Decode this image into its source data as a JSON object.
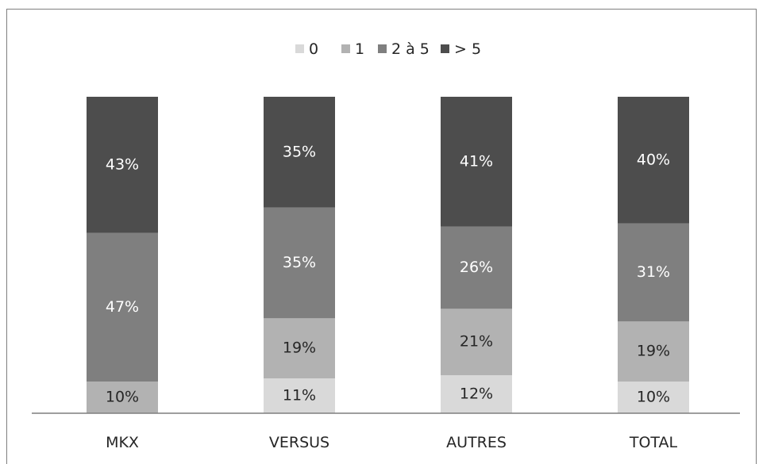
{
  "chart_data": {
    "type": "bar",
    "stacked": true,
    "categories": [
      "MKX",
      "VERSUS",
      "AUTRES",
      "TOTAL"
    ],
    "series": [
      {
        "name": "0",
        "color": "#d9d9d9",
        "label_color": "#262626",
        "values": [
          0,
          11,
          12,
          10
        ]
      },
      {
        "name": "1",
        "color": "#b2b2b2",
        "label_color": "#262626",
        "values": [
          10,
          19,
          21,
          19
        ]
      },
      {
        "name": "2 à 5",
        "color": "#7f7f7f",
        "label_color": "#ffffff",
        "values": [
          47,
          35,
          26,
          31
        ]
      },
      {
        "name": "> 5",
        "color": "#4d4d4d",
        "label_color": "#ffffff",
        "values": [
          43,
          35,
          41,
          40
        ]
      }
    ],
    "data_labels": [
      [
        "",
        "11%",
        "12%",
        "10%"
      ],
      [
        "10%",
        "19%",
        "21%",
        "19%"
      ],
      [
        "47%",
        "35%",
        "26%",
        "31%"
      ],
      [
        "43%",
        "35%",
        "41%",
        "40%"
      ]
    ],
    "legend_position": "top-center",
    "ylim": [
      0,
      100
    ],
    "grid": false
  }
}
